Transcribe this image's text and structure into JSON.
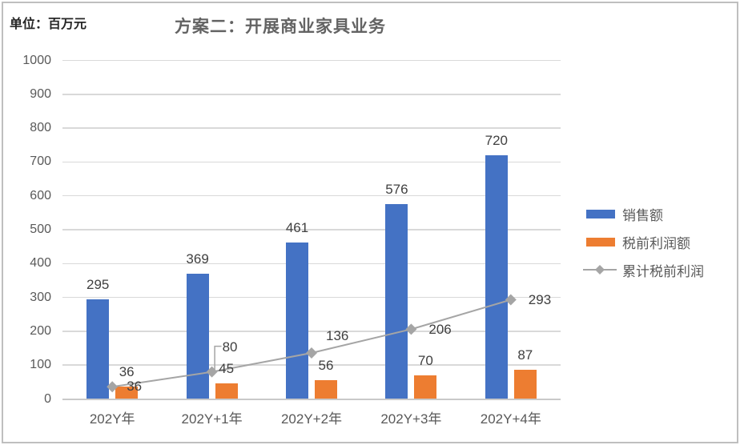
{
  "unit_label": "单位：百万元",
  "title": "方案二：开展商业家具业务",
  "style": {
    "background": "#FFFFFF",
    "frame_border": "#BFBFBF",
    "grid_color": "#D9D9D9",
    "axis_color": "#C9C9C9",
    "tick_text_color": "#595959",
    "data_label_color": "#404040",
    "title_color": "#636363",
    "unit_label_color": "#262626",
    "legend_text_color": "#595959"
  },
  "chart_data": {
    "type": "bar",
    "subtype": "clustered-bars-with-line",
    "title": "方案二：开展商业家具业务",
    "unit": "百万元",
    "categories": [
      "202Y年",
      "202Y+1年",
      "202Y+2年",
      "202Y+3年",
      "202Y+4年"
    ],
    "series": [
      {
        "name": "销售额",
        "type": "bar",
        "color": "#4472C4",
        "values": [
          295,
          369,
          461,
          576,
          720
        ]
      },
      {
        "name": "税前利润额",
        "type": "bar",
        "color": "#ED7D31",
        "values": [
          36,
          45,
          56,
          70,
          87
        ]
      },
      {
        "name": "累计税前利润",
        "type": "line",
        "marker": "diamond",
        "color": "#A5A5A5",
        "values": [
          36,
          80,
          136,
          206,
          293
        ]
      }
    ],
    "ylim": [
      0,
      1000
    ],
    "yticks": [
      0,
      100,
      200,
      300,
      400,
      500,
      600,
      700,
      800,
      900,
      1000
    ],
    "grid": true,
    "legend_position": "right",
    "data_labels": true,
    "line_label_offsets": {
      "dx": [
        18,
        13,
        18,
        22,
        22
      ],
      "dy": [
        0,
        -31,
        -21,
        1,
        0
      ],
      "leader_index": 1
    }
  }
}
